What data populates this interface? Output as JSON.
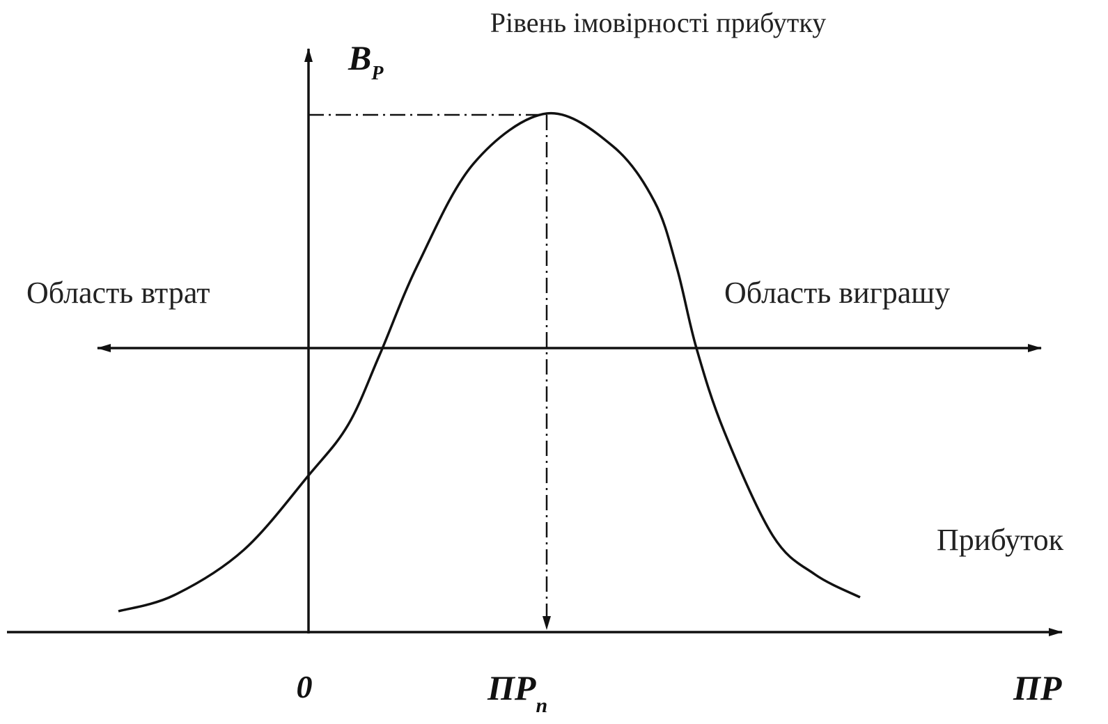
{
  "title": "Рівень імовірності прибутку",
  "y_axis": {
    "main": "B",
    "sub": "P"
  },
  "left_region": "Область втрат",
  "right_region": "Область виграшу",
  "curve_label": "Прибуток",
  "x_axis": {
    "origin": "0",
    "peak": {
      "main": "ПР",
      "sub": "п"
    },
    "end": "ПР"
  }
}
